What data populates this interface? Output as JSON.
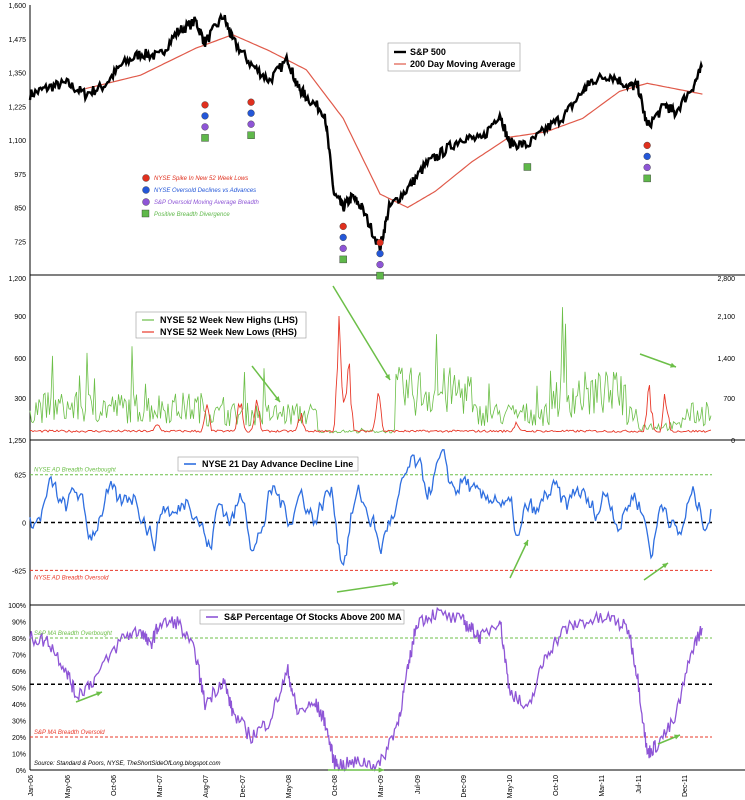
{
  "chart_data": [
    {
      "type": "line",
      "panel": "sp500",
      "yticks_left": [
        "1,600",
        "1,475",
        "1,350",
        "1,225",
        "1,100",
        "975",
        "850",
        "725"
      ],
      "ylim": [
        600,
        1600
      ],
      "series": [
        {
          "name": "S&P 500",
          "color": "#000000",
          "x": [
            "2006-01",
            "2006-03",
            "2006-05",
            "2006-07",
            "2006-09",
            "2006-11",
            "2007-01",
            "2007-03",
            "2007-05",
            "2007-07",
            "2007-08",
            "2007-10",
            "2007-11",
            "2008-01",
            "2008-03",
            "2008-05",
            "2008-06",
            "2008-07",
            "2008-09",
            "2008-10",
            "2008-11",
            "2008-12",
            "2009-01",
            "2009-03",
            "2009-04",
            "2009-06",
            "2009-08",
            "2009-10",
            "2009-12",
            "2010-02",
            "2010-04",
            "2010-05",
            "2010-07",
            "2010-09",
            "2010-11",
            "2011-01",
            "2011-02",
            "2011-04",
            "2011-06",
            "2011-07",
            "2011-08",
            "2011-10",
            "2011-11",
            "2012-01",
            "2012-02"
          ],
          "values": [
            1268,
            1295,
            1310,
            1270,
            1300,
            1380,
            1420,
            1410,
            1500,
            1540,
            1460,
            1560,
            1470,
            1380,
            1320,
            1400,
            1300,
            1260,
            1200,
            900,
            850,
            890,
            850,
            700,
            850,
            920,
            1010,
            1060,
            1110,
            1100,
            1200,
            1090,
            1080,
            1140,
            1190,
            1280,
            1320,
            1340,
            1300,
            1300,
            1150,
            1230,
            1200,
            1300,
            1370
          ]
        },
        {
          "name": "200 Day Moving Average",
          "color": "#e05a4a",
          "x": [
            "2006-07",
            "2007-01",
            "2007-07",
            "2007-11",
            "2008-03",
            "2008-07",
            "2008-11",
            "2009-03",
            "2009-06",
            "2009-09",
            "2010-01",
            "2010-05",
            "2010-09",
            "2011-01",
            "2011-05",
            "2011-08",
            "2011-11",
            "2012-02"
          ],
          "values": [
            1290,
            1340,
            1440,
            1490,
            1430,
            1360,
            1180,
            900,
            850,
            910,
            1020,
            1110,
            1130,
            1180,
            1280,
            1310,
            1290,
            1270
          ]
        }
      ],
      "legend_markers": [
        {
          "label": "NYSE Spike In New 52 Week Lows",
          "color": "#e0301e"
        },
        {
          "label": "NYSE Oversold Declines vs Advances",
          "color": "#2457d8"
        },
        {
          "label": "S&P Oversold Moving Average Breadth",
          "color": "#8e55d6"
        },
        {
          "label": "Positive Breadth Divergence",
          "color": "#5fb84a"
        }
      ],
      "signals": [
        {
          "date": "2007-08",
          "s": 1230,
          "markers": [
            "red",
            "blue",
            "purple",
            "green"
          ]
        },
        {
          "date": "2008-01",
          "s": 1240,
          "markers": [
            "red",
            "blue",
            "purple",
            "green"
          ]
        },
        {
          "date": "2008-11",
          "s": 780,
          "markers": [
            "red",
            "blue",
            "purple",
            "green"
          ]
        },
        {
          "date": "2009-03",
          "s": 720,
          "markers": [
            "red",
            "blue",
            "purple",
            "green"
          ]
        },
        {
          "date": "2010-07",
          "s": 1000,
          "markers": [
            "green"
          ]
        },
        {
          "date": "2011-08",
          "s": 1080,
          "markers": [
            "red",
            "blue",
            "purple",
            "green"
          ]
        }
      ]
    },
    {
      "type": "line",
      "panel": "highs_lows",
      "yticks_left": [
        "1,200",
        "900",
        "600",
        "300",
        "1,250"
      ],
      "yticks_right": [
        "2,800",
        "2,100",
        "1,400",
        "700",
        "0"
      ],
      "ylim_left": [
        0,
        1200
      ],
      "ylim_right": [
        0,
        2800
      ],
      "series": [
        {
          "name": "NYSE 52 Week New Highs (LHS)",
          "color": "#6cbf48"
        },
        {
          "name": "NYSE 52 Week New Lows (RHS)",
          "color": "#e8392a"
        }
      ]
    },
    {
      "type": "line",
      "panel": "ad_line",
      "yticks_left": [
        "625",
        "0",
        "-625"
      ],
      "ylim": [
        -1000,
        1000
      ],
      "series": [
        {
          "name": "NYSE 21 Day Advance Decline Line",
          "color": "#2f6fe0"
        }
      ],
      "reference_lines": [
        {
          "label": "NYSE AD Breadth Overbought",
          "value": 625,
          "color": "#6cbf48"
        },
        {
          "label": "NYSE AD Breadth Oversold",
          "value": -625,
          "color": "#e8392a"
        }
      ]
    },
    {
      "type": "line",
      "panel": "pct_above_200ma",
      "yticks_left": [
        "100%",
        "90%",
        "80%",
        "70%",
        "60%",
        "50%",
        "40%",
        "30%",
        "20%",
        "10%",
        "0%"
      ],
      "ylim": [
        0,
        100
      ],
      "series": [
        {
          "name": "S&P Percentage Of Stocks Above 200 MA",
          "color": "#8e55d6",
          "x": [
            "2006-01",
            "2006-03",
            "2006-05",
            "2006-06",
            "2006-08",
            "2006-11",
            "2007-01",
            "2007-02",
            "2007-03",
            "2007-05",
            "2007-07",
            "2007-08",
            "2007-10",
            "2007-11",
            "2008-01",
            "2008-03",
            "2008-05",
            "2008-06",
            "2008-08",
            "2008-09",
            "2008-10",
            "2008-11",
            "2009-01",
            "2009-03",
            "2009-05",
            "2009-06",
            "2009-07",
            "2009-09",
            "2009-12",
            "2010-01",
            "2010-02",
            "2010-04",
            "2010-05",
            "2010-07",
            "2010-09",
            "2010-11",
            "2011-01",
            "2011-04",
            "2011-06",
            "2011-07",
            "2011-08",
            "2011-09",
            "2011-11",
            "2012-01",
            "2012-02"
          ],
          "values": [
            80,
            78,
            60,
            45,
            55,
            80,
            85,
            75,
            88,
            90,
            70,
            40,
            55,
            35,
            20,
            30,
            60,
            35,
            40,
            30,
            5,
            3,
            5,
            3,
            30,
            60,
            90,
            95,
            90,
            85,
            80,
            92,
            50,
            35,
            70,
            85,
            90,
            92,
            85,
            55,
            10,
            15,
            30,
            75,
            86
          ]
        }
      ],
      "reference_lines": [
        {
          "label": "S&P MA Breadth Overbought",
          "value": 80,
          "color": "#6cbf48"
        },
        {
          "label": "S&P MA Breadth Oversold",
          "value": 20,
          "color": "#e8392a"
        },
        {
          "label": "",
          "value": 52,
          "color": "#000000"
        }
      ],
      "source": "Source: Standard & Poors, NYSE, TheShortSideOfLong.blogspot.com"
    }
  ],
  "x_axis": {
    "ticks": [
      "Jan-06",
      "May-06",
      "Oct-06",
      "Mar-07",
      "Aug-07",
      "Dec-07",
      "May-08",
      "Oct-08",
      "Mar-09",
      "Jul-09",
      "Dec-09",
      "May-10",
      "Oct-10",
      "Mar-11",
      "Jul-11",
      "Dec-11"
    ]
  },
  "colors": {
    "black": "#000000",
    "red": "#e0301e",
    "blue": "#2457d8",
    "purple": "#8e55d6",
    "green": "#5fb84a"
  }
}
